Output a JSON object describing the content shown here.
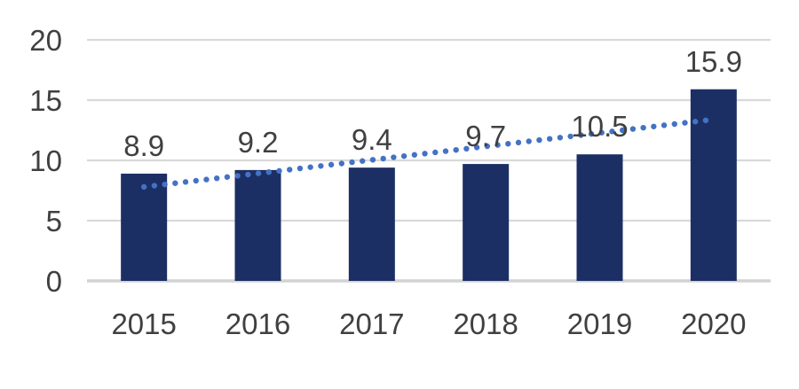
{
  "chart_data": {
    "type": "bar",
    "title": "",
    "xlabel": "",
    "ylabel": "",
    "categories": [
      "2015",
      "2016",
      "2017",
      "2018",
      "2019",
      "2020"
    ],
    "values": [
      8.9,
      9.2,
      9.4,
      9.7,
      10.5,
      15.9
    ],
    "data_labels": [
      "8.9",
      "9.2",
      "9.4",
      "9.7",
      "10.5",
      "15.9"
    ],
    "ylim": [
      0,
      20
    ],
    "yticks": [
      0,
      5,
      10,
      15,
      20
    ],
    "ytick_labels": [
      "0",
      "5",
      "10",
      "15",
      "20"
    ],
    "grid": true,
    "legend": false,
    "trendline": {
      "type": "linear",
      "style": "dotted",
      "endpoint_values": [
        7.8,
        13.4
      ]
    },
    "colors": {
      "bar": "#1C2F64",
      "trendline": "#4472C4",
      "gridline": "#D9D9D9",
      "baseline": "#D2D2D2",
      "label_text": "#404040",
      "background": "#FFFFFF"
    }
  }
}
